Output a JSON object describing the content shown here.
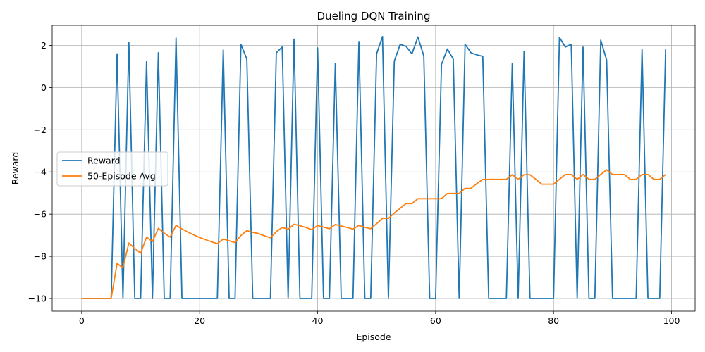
{
  "chart_data": {
    "type": "line",
    "title": "Dueling DQN Training",
    "xlabel": "Episode",
    "ylabel": "Reward",
    "xlim": [
      -5,
      104
    ],
    "ylim": [
      -10.6,
      2.95
    ],
    "x_ticks": [
      0,
      20,
      40,
      60,
      80,
      100
    ],
    "y_ticks": [
      -10,
      -8,
      -6,
      -4,
      -2,
      0,
      2
    ],
    "grid": true,
    "legend_position": "center-left",
    "series": [
      {
        "name": "Reward",
        "color": "#1f77b4",
        "values": [
          -10,
          -10,
          -10,
          -10,
          -10,
          -10,
          1.6,
          -10,
          2.15,
          -10,
          -10,
          1.25,
          -10,
          1.65,
          -10,
          -10,
          2.35,
          -10,
          -10,
          -10,
          -10,
          -10,
          -10,
          -10,
          1.78,
          -10,
          -10,
          2.05,
          1.35,
          -10,
          -10,
          -10,
          -10,
          1.65,
          1.92,
          -10,
          2.3,
          -10,
          -10,
          -10,
          1.88,
          -10,
          -10,
          1.15,
          -10,
          -10,
          -10,
          2.18,
          -10,
          -10,
          1.6,
          2.42,
          -10,
          1.25,
          2.05,
          1.95,
          1.6,
          2.4,
          1.5,
          -10,
          -10,
          1.1,
          1.83,
          1.35,
          -10,
          2.05,
          1.65,
          1.55,
          1.48,
          -10,
          -10,
          -10,
          -10,
          1.15,
          -10,
          1.72,
          -10,
          -10,
          -10,
          -10,
          -10,
          2.38,
          1.92,
          2.05,
          -10,
          1.92,
          -10,
          -10,
          2.25,
          1.3,
          -10,
          -10,
          -10,
          -10,
          -10,
          1.8,
          -10,
          -10,
          -10,
          1.85
        ]
      },
      {
        "name": "50-Episode Avg",
        "color": "#ff7f0e",
        "values": [
          -10,
          -10,
          -10,
          -10,
          -10,
          -10,
          -8.34,
          -8.54,
          -7.37,
          -7.63,
          -7.85,
          -7.09,
          -7.3,
          -6.67,
          -6.9,
          -7.09,
          -6.53,
          -6.7,
          -6.85,
          -6.98,
          -7.11,
          -7.21,
          -7.31,
          -7.4,
          -7.18,
          -7.26,
          -7.35,
          -7.01,
          -6.78,
          -6.86,
          -6.92,
          -7.03,
          -7.12,
          -6.83,
          -6.63,
          -6.72,
          -6.48,
          -6.55,
          -6.63,
          -6.73,
          -6.54,
          -6.61,
          -6.69,
          -6.49,
          -6.56,
          -6.63,
          -6.71,
          -6.53,
          -6.62,
          -6.69,
          -6.45,
          -6.2,
          -6.2,
          -5.95,
          -5.72,
          -5.5,
          -5.5,
          -5.27,
          -5.27,
          -5.27,
          -5.27,
          -5.27,
          -5.02,
          -5.02,
          -5.02,
          -4.78,
          -4.78,
          -4.55,
          -4.35,
          -4.35,
          -4.35,
          -4.35,
          -4.35,
          -4.13,
          -4.35,
          -4.13,
          -4.13,
          -4.35,
          -4.58,
          -4.58,
          -4.58,
          -4.35,
          -4.12,
          -4.12,
          -4.35,
          -4.12,
          -4.35,
          -4.35,
          -4.12,
          -3.9,
          -4.12,
          -4.12,
          -4.12,
          -4.35,
          -4.35,
          -4.12,
          -4.12,
          -4.35,
          -4.35,
          -4.12
        ]
      }
    ]
  }
}
